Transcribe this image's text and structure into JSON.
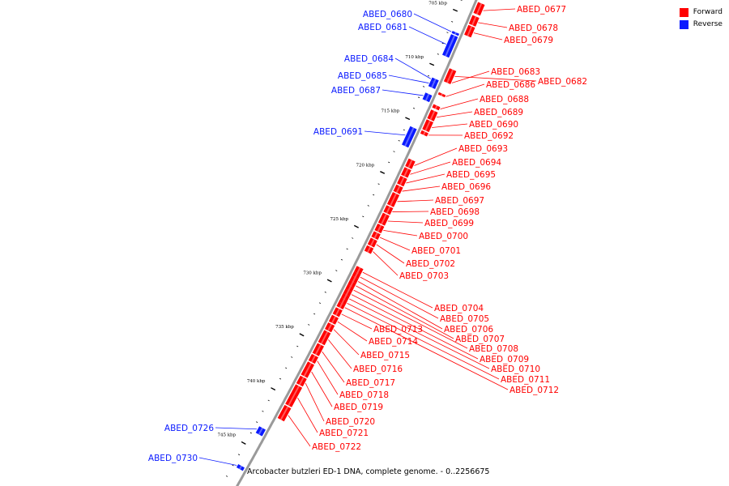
{
  "legend": {
    "forward_label": "Forward",
    "reverse_label": "Reverse"
  },
  "colors": {
    "forward": "#ff0000",
    "reverse": "#0a1aff",
    "backbone": "#9a9a9a",
    "ticks": "#000000"
  },
  "caption": "Arcobacter butzleri ED-1 DNA, complete genome. - 0..2256675",
  "ticks": [
    {
      "label": "705 kbp",
      "pos_kbp": 705
    },
    {
      "label": "710 kbp",
      "pos_kbp": 710
    },
    {
      "label": "715 kbp",
      "pos_kbp": 715
    },
    {
      "label": "720 kbp",
      "pos_kbp": 720
    },
    {
      "label": "725 kbp",
      "pos_kbp": 725
    },
    {
      "label": "730 kbp",
      "pos_kbp": 730
    },
    {
      "label": "735 kbp",
      "pos_kbp": 735
    },
    {
      "label": "740 kbp",
      "pos_kbp": 740
    },
    {
      "label": "745 kbp",
      "pos_kbp": 745
    }
  ],
  "genes": [
    {
      "id": "ABED_0677",
      "strand": "forward",
      "start_kbp": 703.6,
      "end_kbp": 704.6
    },
    {
      "id": "ABED_0678",
      "strand": "forward",
      "start_kbp": 704.8,
      "end_kbp": 705.6
    },
    {
      "id": "ABED_0679",
      "strand": "forward",
      "start_kbp": 705.7,
      "end_kbp": 706.6
    },
    {
      "id": "ABED_0680",
      "strand": "reverse",
      "start_kbp": 706.7,
      "end_kbp": 706.9
    },
    {
      "id": "ABED_0681",
      "strand": "reverse",
      "start_kbp": 707.0,
      "end_kbp": 708.9
    },
    {
      "id": "ABED_0682",
      "strand": "forward",
      "start_kbp": 709.7,
      "end_kbp": 710.6
    },
    {
      "id": "ABED_0683",
      "strand": "forward",
      "start_kbp": 710.6,
      "end_kbp": 710.9
    },
    {
      "id": "ABED_0684",
      "strand": "reverse",
      "start_kbp": 711.0,
      "end_kbp": 711.3
    },
    {
      "id": "ABED_0685",
      "strand": "reverse",
      "start_kbp": 711.3,
      "end_kbp": 711.8
    },
    {
      "id": "ABED_0686",
      "strand": "forward",
      "start_kbp": 711.9,
      "end_kbp": 712.1
    },
    {
      "id": "ABED_0687",
      "strand": "reverse",
      "start_kbp": 712.4,
      "end_kbp": 713.0
    },
    {
      "id": "ABED_0688",
      "strand": "forward",
      "start_kbp": 713.0,
      "end_kbp": 713.3
    },
    {
      "id": "ABED_0689",
      "strand": "forward",
      "start_kbp": 713.5,
      "end_kbp": 714.3
    },
    {
      "id": "ABED_0690",
      "strand": "forward",
      "start_kbp": 714.4,
      "end_kbp": 715.3
    },
    {
      "id": "ABED_0691",
      "strand": "reverse",
      "start_kbp": 715.5,
      "end_kbp": 717.2
    },
    {
      "id": "ABED_0692",
      "strand": "forward",
      "start_kbp": 715.4,
      "end_kbp": 715.7
    },
    {
      "id": "ABED_0693",
      "strand": "forward",
      "start_kbp": 718.0,
      "end_kbp": 718.7
    },
    {
      "id": "ABED_0694",
      "strand": "forward",
      "start_kbp": 718.8,
      "end_kbp": 719.5
    },
    {
      "id": "ABED_0695",
      "strand": "forward",
      "start_kbp": 719.6,
      "end_kbp": 720.3
    },
    {
      "id": "ABED_0696",
      "strand": "forward",
      "start_kbp": 720.4,
      "end_kbp": 721.0
    },
    {
      "id": "ABED_0697",
      "strand": "forward",
      "start_kbp": 721.1,
      "end_kbp": 722.2
    },
    {
      "id": "ABED_0698",
      "strand": "forward",
      "start_kbp": 722.3,
      "end_kbp": 722.9
    },
    {
      "id": "ABED_0699",
      "strand": "forward",
      "start_kbp": 723.0,
      "end_kbp": 723.9
    },
    {
      "id": "ABED_0700",
      "strand": "forward",
      "start_kbp": 724.0,
      "end_kbp": 724.6
    },
    {
      "id": "ABED_0701",
      "strand": "forward",
      "start_kbp": 724.7,
      "end_kbp": 725.2
    },
    {
      "id": "ABED_0702",
      "strand": "forward",
      "start_kbp": 725.3,
      "end_kbp": 725.9
    },
    {
      "id": "ABED_0703",
      "strand": "forward",
      "start_kbp": 726.0,
      "end_kbp": 726.5
    },
    {
      "id": "ABED_0704",
      "strand": "forward",
      "start_kbp": 727.9,
      "end_kbp": 728.4
    },
    {
      "id": "ABED_0705",
      "strand": "forward",
      "start_kbp": 728.4,
      "end_kbp": 728.8
    },
    {
      "id": "ABED_0706",
      "strand": "forward",
      "start_kbp": 728.8,
      "end_kbp": 729.2
    },
    {
      "id": "ABED_0707",
      "strand": "forward",
      "start_kbp": 729.2,
      "end_kbp": 729.6
    },
    {
      "id": "ABED_0708",
      "strand": "forward",
      "start_kbp": 729.6,
      "end_kbp": 730.0
    },
    {
      "id": "ABED_0709",
      "strand": "forward",
      "start_kbp": 730.0,
      "end_kbp": 730.4
    },
    {
      "id": "ABED_0710",
      "strand": "forward",
      "start_kbp": 730.4,
      "end_kbp": 730.8
    },
    {
      "id": "ABED_0711",
      "strand": "forward",
      "start_kbp": 730.8,
      "end_kbp": 731.2
    },
    {
      "id": "ABED_0712",
      "strand": "forward",
      "start_kbp": 731.2,
      "end_kbp": 731.6
    },
    {
      "id": "ABED_0713",
      "strand": "forward",
      "start_kbp": 731.7,
      "end_kbp": 732.3
    },
    {
      "id": "ABED_0714",
      "strand": "forward",
      "start_kbp": 732.4,
      "end_kbp": 733.0
    },
    {
      "id": "ABED_0715",
      "strand": "forward",
      "start_kbp": 733.1,
      "end_kbp": 733.7
    },
    {
      "id": "ABED_0716",
      "strand": "forward",
      "start_kbp": 733.8,
      "end_kbp": 734.9
    },
    {
      "id": "ABED_0717",
      "strand": "forward",
      "start_kbp": 735.0,
      "end_kbp": 735.9
    },
    {
      "id": "ABED_0718",
      "strand": "forward",
      "start_kbp": 736.0,
      "end_kbp": 736.6
    },
    {
      "id": "ABED_0719",
      "strand": "forward",
      "start_kbp": 736.7,
      "end_kbp": 737.9
    },
    {
      "id": "ABED_0720",
      "strand": "forward",
      "start_kbp": 738.0,
      "end_kbp": 738.7
    },
    {
      "id": "ABED_0721",
      "strand": "forward",
      "start_kbp": 738.8,
      "end_kbp": 740.6
    },
    {
      "id": "ABED_0722",
      "strand": "forward",
      "start_kbp": 740.7,
      "end_kbp": 741.9
    },
    {
      "id": "ABED_0726",
      "strand": "reverse",
      "start_kbp": 743.2,
      "end_kbp": 743.8
    },
    {
      "id": "ABED_0730",
      "strand": "reverse",
      "start_kbp": 746.7,
      "end_kbp": 747.0
    }
  ]
}
